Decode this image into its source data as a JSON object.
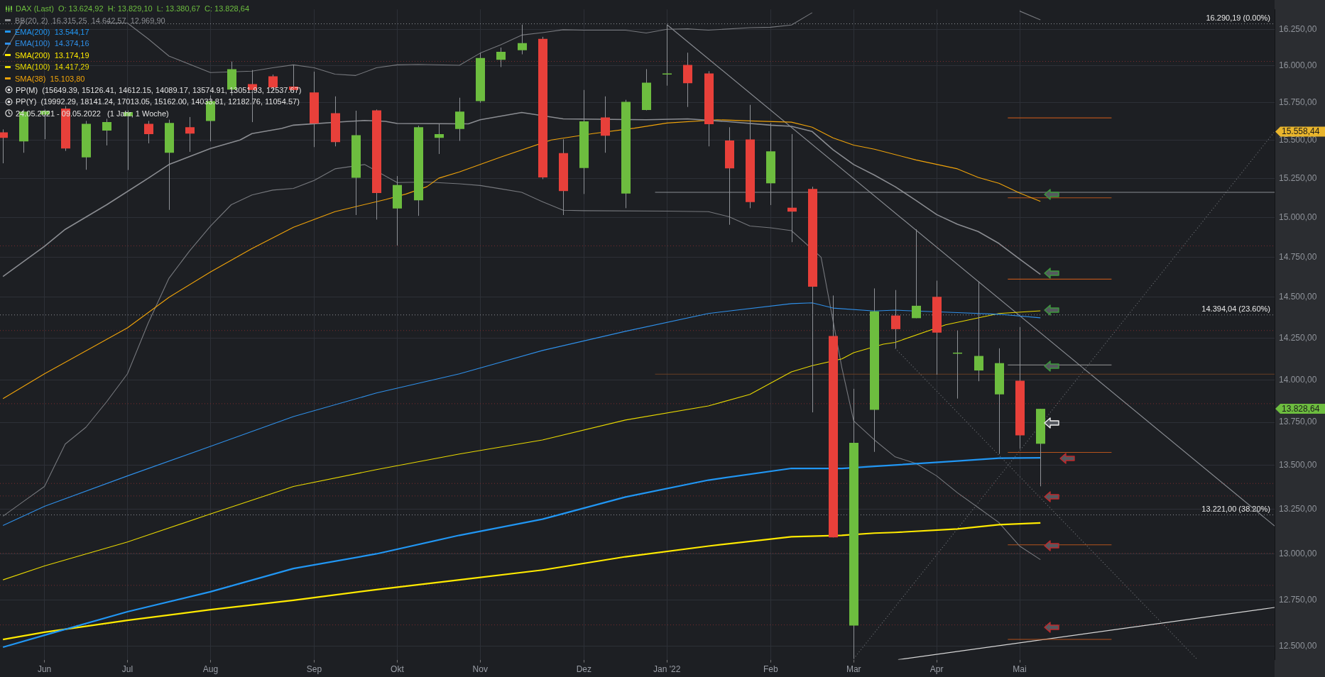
{
  "chart_data": {
    "type": "candlestick",
    "title": "DAX (Last)",
    "legend": "top left",
    "grid": true,
    "log": "y",
    "marker": "none",
    "x": [
      "2021-05-24",
      "2021-05-31",
      "2021-06-07",
      "2021-06-14",
      "2021-06-21",
      "2021-06-28",
      "2021-07-05",
      "2021-07-12",
      "2021-07-19",
      "2021-07-26",
      "2021-08-02",
      "2021-08-09",
      "2021-08-16",
      "2021-08-23",
      "2021-08-30",
      "2021-09-06",
      "2021-09-13",
      "2021-09-20",
      "2021-09-27",
      "2021-10-04",
      "2021-10-11",
      "2021-10-18",
      "2021-10-25",
      "2021-11-01",
      "2021-11-08",
      "2021-11-15",
      "2021-11-22",
      "2021-11-29",
      "2021-12-06",
      "2021-12-13",
      "2021-12-20",
      "2021-12-27",
      "2022-01-03",
      "2022-01-10",
      "2022-01-17",
      "2022-01-24",
      "2022-01-31",
      "2022-02-07",
      "2022-02-14",
      "2022-02-21",
      "2022-02-28",
      "2022-03-07",
      "2022-03-14",
      "2022-03-21",
      "2022-03-28",
      "2022-04-04",
      "2022-04-11",
      "2022-04-18",
      "2022-04-25",
      "2022-05-02",
      "2022-05-09"
    ],
    "ohlc": [
      [
        15553,
        15573,
        15350,
        15517
      ],
      [
        15494,
        15705,
        15419,
        15691
      ],
      [
        15671,
        15705,
        15508,
        15697
      ],
      [
        15711,
        15728,
        15431,
        15447
      ],
      [
        15389,
        15629,
        15308,
        15610
      ],
      [
        15565,
        15643,
        15467,
        15621
      ],
      [
        15660,
        15699,
        15306,
        15688
      ],
      [
        15610,
        15629,
        15481,
        15542
      ],
      [
        15419,
        15637,
        15049,
        15615
      ],
      [
        15587,
        15655,
        15425,
        15545
      ],
      [
        15629,
        15799,
        15494,
        15761
      ],
      [
        15839,
        16029,
        15799,
        15977
      ],
      [
        15876,
        15971,
        15621,
        15836
      ],
      [
        15928,
        15940,
        15833,
        15853
      ],
      [
        15859,
        16006,
        15819,
        15836
      ],
      [
        15819,
        15960,
        15456,
        15612
      ],
      [
        15680,
        15793,
        15461,
        15489
      ],
      [
        15256,
        15697,
        15016,
        15534
      ],
      [
        15699,
        15705,
        14987,
        15157
      ],
      [
        15058,
        15267,
        14823,
        15209
      ],
      [
        15110,
        15598,
        15011,
        15587
      ],
      [
        15517,
        15612,
        15411,
        15542
      ],
      [
        15576,
        15784,
        15497,
        15691
      ],
      [
        15761,
        16086,
        15750,
        16052
      ],
      [
        16040,
        16124,
        15991,
        16095
      ],
      [
        16106,
        16282,
        16078,
        16155
      ],
      [
        16184,
        16198,
        15247,
        15258
      ],
      [
        15417,
        15508,
        15016,
        15170
      ],
      [
        15319,
        15836,
        15151,
        15626
      ],
      [
        15652,
        15793,
        15419,
        15531
      ],
      [
        15154,
        15770,
        15060,
        15756
      ],
      [
        15702,
        15977,
        15699,
        15885
      ],
      [
        15945,
        16282,
        15865,
        15948
      ],
      [
        16006,
        16089,
        15722,
        15882
      ],
      [
        15948,
        15963,
        15461,
        15607
      ],
      [
        15500,
        15587,
        14954,
        15317
      ],
      [
        15506,
        15736,
        15060,
        15099
      ],
      [
        15220,
        15615,
        15080,
        15428
      ],
      [
        15063,
        15542,
        14844,
        15038
      ],
      [
        15184,
        15198,
        13808,
        14566
      ],
      [
        14263,
        14511,
        13093,
        13093
      ],
      [
        12612,
        13947,
        12435,
        13630
      ],
      [
        13823,
        14555,
        13578,
        14414
      ],
      [
        14388,
        14545,
        14189,
        14305
      ],
      [
        14372,
        14925,
        14372,
        14448
      ],
      [
        14503,
        14603,
        14031,
        14284
      ],
      [
        14161,
        14297,
        13889,
        14163
      ],
      [
        14056,
        14598,
        13992,
        14143
      ],
      [
        13914,
        14189,
        13566,
        14100
      ],
      [
        13995,
        14318,
        13596,
        13674
      ],
      [
        13624.92,
        13829.1,
        13380.67,
        13828.64
      ]
    ],
    "colors": [
      "#e8403a",
      "#6dbd3f",
      "#6dbd3f",
      "#e8403a",
      "#6dbd3f",
      "#6dbd3f",
      "#6dbd3f",
      "#e8403a",
      "#6dbd3f",
      "#e8403a",
      "#6dbd3f",
      "#6dbd3f",
      "#e8403a",
      "#e8403a",
      "#e8403a",
      "#e8403a",
      "#e8403a",
      "#6dbd3f",
      "#e8403a",
      "#6dbd3f",
      "#6dbd3f",
      "#6dbd3f",
      "#6dbd3f",
      "#6dbd3f",
      "#6dbd3f",
      "#6dbd3f",
      "#e8403a",
      "#e8403a",
      "#6dbd3f",
      "#e8403a",
      "#6dbd3f",
      "#6dbd3f",
      "#6dbd3f",
      "#e8403a",
      "#e8403a",
      "#e8403a",
      "#e8403a",
      "#6dbd3f",
      "#e8403a",
      "#e8403a",
      "#e8403a",
      "#6dbd3f",
      "#6dbd3f",
      "#e8403a",
      "#6dbd3f",
      "#e8403a",
      "#6dbd3f",
      "#6dbd3f",
      "#6dbd3f",
      "#e8403a",
      "#6dbd3f"
    ],
    "xlim": [
      "2021-05-23",
      "2022-07-27"
    ],
    "xticks": [
      {
        "value": "2021-06-07",
        "label": "Jun"
      },
      {
        "value": "2021-07-05",
        "label": "Jul"
      },
      {
        "value": "2021-08-02",
        "label": "Aug"
      },
      {
        "value": "2021-09-06",
        "label": "Sep"
      },
      {
        "value": "2021-10-04",
        "label": "Okt"
      },
      {
        "value": "2021-11-01",
        "label": "Nov"
      },
      {
        "value": "2021-12-06",
        "label": "Dez"
      },
      {
        "value": "2022-01-03",
        "label": "Jan '22"
      },
      {
        "value": "2022-02-07",
        "label": "Feb"
      },
      {
        "value": "2022-03-07",
        "label": "Mar"
      },
      {
        "value": "2022-04-04",
        "label": "Apr"
      },
      {
        "value": "2022-05-02",
        "label": "Mai"
      }
    ],
    "ylim": [
      12430,
      16388
    ],
    "yticks": [
      {
        "value": 12500,
        "label": "12.500,00"
      },
      {
        "value": 12750,
        "label": "12.750,00"
      },
      {
        "value": 13000,
        "label": "13.000,00"
      },
      {
        "value": 13250,
        "label": "13.250,00"
      },
      {
        "value": 13500,
        "label": "13.500,00"
      },
      {
        "value": 13750,
        "label": "13.750,00"
      },
      {
        "value": 14000,
        "label": "14.000,00"
      },
      {
        "value": 14250,
        "label": "14.250,00"
      },
      {
        "value": 14500,
        "label": "14.500,00"
      },
      {
        "value": 14750,
        "label": "14.750,00"
      },
      {
        "value": 15000,
        "label": "15.000,00"
      },
      {
        "value": 15250,
        "label": "15.250,00"
      },
      {
        "value": 15500,
        "label": "15.500,00"
      },
      {
        "value": 15750,
        "label": "15.750,00"
      },
      {
        "value": 16000,
        "label": "16.000,00"
      },
      {
        "value": 16250,
        "label": "16.250,00"
      }
    ],
    "series": [
      {
        "type": "line",
        "name": "BB(20, 2)  16.315,25  14.642,57  12.969,90",
        "color": "#8a8c91",
        "x": [
          "2021-05-24",
          "2021-06-07",
          "2021-06-14",
          "2021-06-28",
          "2021-07-12",
          "2021-07-19",
          "2021-08-02",
          "2021-08-12",
          "2021-08-16",
          "2021-08-26",
          "2021-08-30",
          "2021-09-16",
          "2021-09-23",
          "2021-09-30",
          "2021-10-04",
          "2021-10-28",
          "2021-11-01",
          "2021-11-15",
          "2021-11-29",
          "2021-12-27",
          "2022-01-10",
          "2022-01-24",
          "2022-02-07",
          "2022-02-14",
          "2022-02-21",
          "2022-02-28",
          "2022-03-07",
          "2022-03-14",
          "2022-03-21",
          "2022-03-28",
          "2022-04-04",
          "2022-04-11",
          "2022-04-18",
          "2022-04-25",
          "2022-05-02",
          "2022-05-09"
        ],
        "values": [
          14629,
          14818,
          14925,
          15082,
          15253,
          15342,
          15447,
          15503,
          15545,
          15579,
          15601,
          15624,
          15632,
          15626,
          15612,
          15610,
          15637,
          15685,
          15643,
          15637,
          15643,
          15624,
          15601,
          15593,
          15559,
          15439,
          15342,
          15273,
          15198,
          15110,
          15019,
          14957,
          14911,
          14836,
          14737,
          14642.57
        ]
      },
      {
        "type": "line",
        "name": "EMA(200)  13.544,17",
        "color": "#2196f3",
        "x": [
          "2021-05-24",
          "2021-06-07",
          "2021-07-05",
          "2021-08-02",
          "2021-08-30",
          "2021-09-27",
          "2021-10-25",
          "2021-11-22",
          "2021-12-20",
          "2022-01-17",
          "2022-02-14",
          "2022-03-03",
          "2022-03-14",
          "2022-04-11",
          "2022-04-25",
          "2022-05-09"
        ],
        "values": [
          12496,
          12560,
          12686,
          12794,
          12921,
          13002,
          13105,
          13195,
          13320,
          13416,
          13483,
          13483,
          13495,
          13525,
          13542,
          13544.17
        ]
      },
      {
        "type": "line",
        "name": "EMA(100)  14.374,16",
        "color": "#2f8fe8",
        "x": [
          "2021-05-24",
          "2021-06-07",
          "2021-07-05",
          "2021-08-02",
          "2021-08-30",
          "2021-09-27",
          "2021-10-25",
          "2021-11-22",
          "2021-12-20",
          "2022-01-17",
          "2022-02-14",
          "2022-02-21",
          "2022-02-28",
          "2022-03-14",
          "2022-03-21",
          "2022-04-11",
          "2022-04-25",
          "2022-05-09"
        ],
        "values": [
          13160,
          13267,
          13440,
          13610,
          13783,
          13922,
          14036,
          14176,
          14292,
          14401,
          14461,
          14466,
          14434,
          14416,
          14421,
          14406,
          14396,
          14374.16
        ]
      },
      {
        "type": "line",
        "name": "SMA(200)  13.174,19",
        "color": "#ffea00",
        "x": [
          "2021-05-24",
          "2021-06-07",
          "2021-07-05",
          "2021-08-02",
          "2021-08-30",
          "2021-09-27",
          "2021-10-25",
          "2021-11-22",
          "2021-12-20",
          "2022-01-17",
          "2022-02-14",
          "2022-03-03",
          "2022-03-14",
          "2022-03-21",
          "2022-04-11",
          "2022-04-25",
          "2022-05-09"
        ],
        "values": [
          12537,
          12576,
          12640,
          12697,
          12748,
          12806,
          12859,
          12913,
          12986,
          13045,
          13097,
          13105,
          13117,
          13121,
          13140,
          13164,
          13174.19
        ]
      },
      {
        "type": "line",
        "name": "SMA(100)  14.417,29",
        "color": "#e8d800",
        "x": [
          "2021-05-24",
          "2021-06-07",
          "2021-07-05",
          "2021-08-02",
          "2021-08-30",
          "2021-09-27",
          "2021-10-25",
          "2021-11-22",
          "2021-12-20",
          "2022-01-17",
          "2022-01-31",
          "2022-02-14",
          "2022-02-21",
          "2022-03-03",
          "2022-03-07",
          "2022-03-17",
          "2022-03-21",
          "2022-04-07",
          "2022-04-25",
          "2022-05-09"
        ],
        "values": [
          12859,
          12935,
          13068,
          13224,
          13380,
          13476,
          13566,
          13647,
          13763,
          13846,
          13914,
          14048,
          14085,
          14125,
          14163,
          14214,
          14225,
          14331,
          14401,
          14417.29
        ]
      },
      {
        "type": "line",
        "name": "SMA(38)  15.103,80",
        "color": "#f0a30a",
        "x": [
          "2021-05-24",
          "2021-06-07",
          "2021-07-05",
          "2021-07-19",
          "2021-08-02",
          "2021-08-16",
          "2021-08-30",
          "2021-09-13",
          "2021-09-30",
          "2021-10-07",
          "2021-10-14",
          "2021-10-18",
          "2021-10-25",
          "2021-11-08",
          "2021-11-25",
          "2021-12-09",
          "2021-12-23",
          "2022-01-03",
          "2022-01-20",
          "2022-01-31",
          "2022-02-14",
          "2022-02-21",
          "2022-02-28",
          "2022-03-07",
          "2022-03-14",
          "2022-03-28",
          "2022-04-11",
          "2022-04-18",
          "2022-04-25",
          "2022-05-02",
          "2022-05-09"
        ],
        "values": [
          13889,
          14036,
          14313,
          14500,
          14657,
          14804,
          14938,
          15038,
          15115,
          15151,
          15198,
          15253,
          15294,
          15391,
          15503,
          15545,
          15581,
          15615,
          15637,
          15629,
          15621,
          15587,
          15517,
          15469,
          15442,
          15372,
          15314,
          15258,
          15220,
          15157,
          15103.8
        ]
      },
      {
        "type": "line",
        "color": "#76787d",
        "x": [
          "2021-05-24",
          "2021-05-31",
          "2021-06-14",
          "2021-06-28",
          "2021-07-05",
          "2021-07-12",
          "2021-07-19",
          "2021-08-02",
          "2021-08-16",
          "2021-08-23",
          "2021-08-30",
          "2021-09-06",
          "2021-09-13",
          "2021-09-20",
          "2021-09-27",
          "2021-10-04",
          "2021-10-11",
          "2021-10-25",
          "2021-11-01",
          "2021-11-08",
          "2021-11-15",
          "2021-11-22",
          "2021-11-29",
          "2021-12-06",
          "2021-12-20",
          "2021-12-27",
          "2022-01-03",
          "2022-01-10",
          "2022-01-17",
          "2022-01-31",
          "2022-02-07",
          "2022-02-14",
          "2022-02-21",
          "2022-03-28",
          "2022-05-02",
          "2022-05-09"
        ],
        "values": [
          16072,
          16316,
          null,
          16293,
          16293,
          16184,
          16066,
          15954,
          15963,
          15986,
          16006,
          15986,
          15943,
          15934,
          15986,
          16006,
          16009,
          16003,
          16086,
          16144,
          16210,
          16227,
          16247,
          16244,
          16244,
          16224,
          16250,
          16253,
          16244,
          16261,
          16264,
          16279,
          16365,
          null,
          16376,
          16315.25
        ]
      },
      {
        "type": "line",
        "color": "#76787d",
        "x": [
          "2021-05-24",
          "2021-05-31",
          "2021-06-07",
          "2021-06-14",
          "2021-06-21",
          "2021-06-28",
          "2021-07-05",
          "2021-07-12",
          "2021-07-19",
          "2021-07-26",
          "2021-08-02",
          "2021-08-09",
          "2021-08-16",
          "2021-08-23",
          "2021-08-30",
          "2021-09-06",
          "2021-09-13",
          "2021-09-23",
          "2021-09-30",
          "2021-10-04",
          "2021-10-14",
          "2021-10-25",
          "2021-11-01",
          "2021-11-08",
          "2021-11-15",
          "2021-11-22",
          "2021-11-29",
          "2021-12-06",
          "2022-01-03",
          "2022-01-17",
          "2022-01-24",
          "2022-01-31",
          "2022-02-07",
          "2022-02-14",
          "2022-02-24",
          "2022-03-03",
          "2022-03-07",
          "2022-03-14",
          "2022-03-21",
          "2022-03-28",
          "2022-04-04",
          "2022-04-11",
          "2022-04-18",
          "2022-04-25",
          "2022-05-02",
          "2022-05-09"
        ],
        "values": [
          13212,
          13296,
          13380,
          13623,
          13721,
          13871,
          14036,
          14342,
          14618,
          14790,
          14946,
          15082,
          15145,
          15176,
          15187,
          15239,
          15314,
          15342,
          15267,
          15225,
          15228,
          15217,
          15206,
          15184,
          15162,
          15101,
          15047,
          15044,
          15041,
          15038,
          15005,
          14946,
          14935,
          14917,
          14750,
          14074,
          13758,
          13647,
          13549,
          13512,
          13440,
          13344,
          13260,
          13176,
          13045,
          12969.9
        ]
      },
      {
        "type": "line",
        "color": "#8a8d93",
        "x": [
          "2021-12-30",
          "2022-07-27"
        ],
        "values": [
          15162,
          15162
        ]
      },
      {
        "type": "line",
        "color": "#6a3f24",
        "x": [
          "2021-12-30",
          "2022-07-27"
        ],
        "values": [
          14033.81,
          14033.81
        ]
      },
      {
        "type": "line",
        "color": "#b5531c",
        "x": [
          "2022-04-28",
          "2022-06-02"
        ],
        "values": [
          15649.39,
          15649.39
        ]
      },
      {
        "type": "line",
        "color": "#b5531c",
        "x": [
          "2022-04-28",
          "2022-06-02"
        ],
        "values": [
          15126.41,
          15126.41
        ]
      },
      {
        "type": "line",
        "color": "#b5531c",
        "x": [
          "2022-04-28",
          "2022-06-02"
        ],
        "values": [
          14612.15,
          14612.15
        ]
      },
      {
        "type": "line",
        "color": "#9a9a9a",
        "x": [
          "2022-04-28",
          "2022-06-02"
        ],
        "values": [
          14089.17,
          14089.17
        ]
      },
      {
        "type": "line",
        "color": "#b5531c",
        "x": [
          "2022-04-28",
          "2022-06-02"
        ],
        "values": [
          13574.91,
          13574.91
        ]
      },
      {
        "type": "line",
        "color": "#b5531c",
        "x": [
          "2022-04-28",
          "2022-06-02"
        ],
        "values": [
          13051.93,
          13051.93
        ]
      },
      {
        "type": "line",
        "color": "#b5531c",
        "x": [
          "2022-04-28",
          "2022-06-02"
        ],
        "values": [
          12537.67,
          12537.67
        ]
      },
      {
        "type": "line",
        "color": "#8a8d93",
        "x": [
          "2022-01-03",
          "2022-07-27"
        ],
        "values": [
          16282,
          13157
        ]
      },
      {
        "type": "line",
        "color": "#74777c",
        "line_style": "dotted",
        "x": [
          "2022-03-21",
          "2022-07-01"
        ],
        "values": [
          14189,
          12430
        ]
      },
      {
        "type": "line",
        "color": "#74777c",
        "line_style": "dotted",
        "x": [
          "2022-03-07",
          "2022-07-27"
        ],
        "values": [
          12435,
          15558.44
        ]
      },
      {
        "type": "line",
        "color": "#d8d8d8",
        "x": [
          "2022-03-22",
          "2022-07-27"
        ],
        "values": [
          12430,
          12709
        ]
      }
    ],
    "ref_lines": [
      {
        "axis": "y",
        "value": 16290.19,
        "label": "16.290,19 (0.00%)",
        "color": "#8e9197",
        "line_style": "dotted"
      },
      {
        "axis": "y",
        "value": 14394.04,
        "label": "14.394,04 (23.60%)",
        "color": "#8e9197",
        "line_style": "dotted"
      },
      {
        "axis": "y",
        "value": 13221,
        "label": "13.221,00 (38.20%)",
        "color": "#8e9197",
        "line_style": "dotted"
      },
      {
        "axis": "y",
        "value": 16032,
        "color": "#7a2c2e",
        "line_style": "dotted"
      },
      {
        "axis": "y",
        "value": 14823,
        "color": "#7a2c2e",
        "line_style": "dotted"
      },
      {
        "axis": "y",
        "value": 14299,
        "color": "#7a2c2e",
        "line_style": "dotted"
      },
      {
        "axis": "y",
        "value": 13861,
        "color": "#7a2c2e",
        "line_style": "dotted"
      },
      {
        "axis": "y",
        "value": 13399,
        "color": "#7a2c2e",
        "line_style": "dotted"
      },
      {
        "axis": "y",
        "value": 13328,
        "color": "#7a2c2e",
        "line_style": "dotted"
      },
      {
        "axis": "y",
        "value": 13007,
        "color": "#7a2c2e",
        "line_style": "dotted"
      },
      {
        "axis": "y",
        "value": 12831,
        "color": "#7a2c2e",
        "line_style": "dotted"
      },
      {
        "axis": "y",
        "value": 12617,
        "color": "#7a2c2e",
        "line_style": "dotted"
      }
    ],
    "annotations": [
      "O: 13.624,92  H: 13.829,10  L: 13.380,67  C: 13.828,64",
      "PP(M)  (15649.39, 15126.41, 14612.15, 14089.17, 13574.91, 13051.93, 12537.67)",
      "PP(Y)  (19992.29, 18141.24, 17013.05, 15162.00, 14033.81, 12182.76, 11054.57)",
      "24.05.2021 - 09.05.2022   (1 Jahr, 1 Woche)",
      {
        "text": "15.558,44",
        "x": "2022-07-27",
        "y": 15558.44
      },
      "13.828,64"
    ]
  }
}
